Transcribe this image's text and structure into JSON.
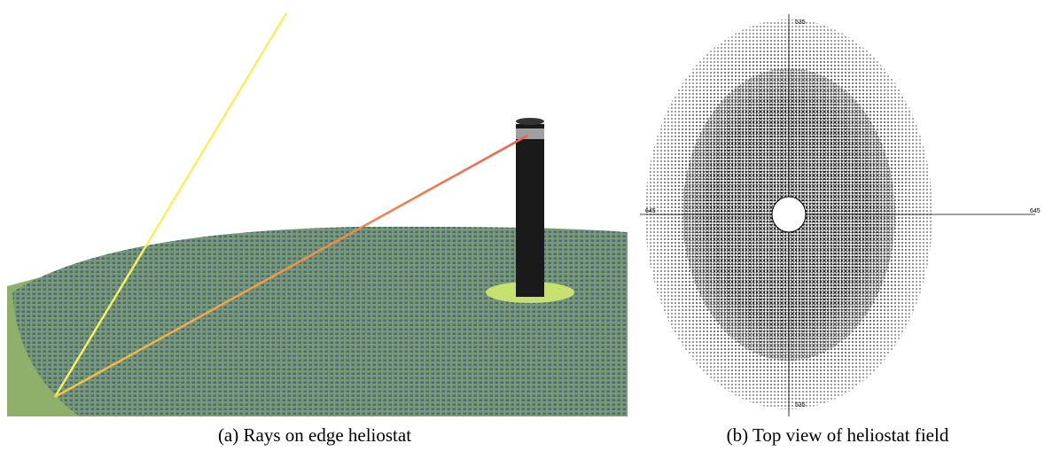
{
  "panels": [
    {
      "caption": "(a) Rays on edge heliostat"
    },
    {
      "caption": "(b) Top view of heliostat field",
      "axis_labels": {
        "top": "535",
        "bottom": "535",
        "left": "645",
        "right": "645"
      }
    }
  ]
}
